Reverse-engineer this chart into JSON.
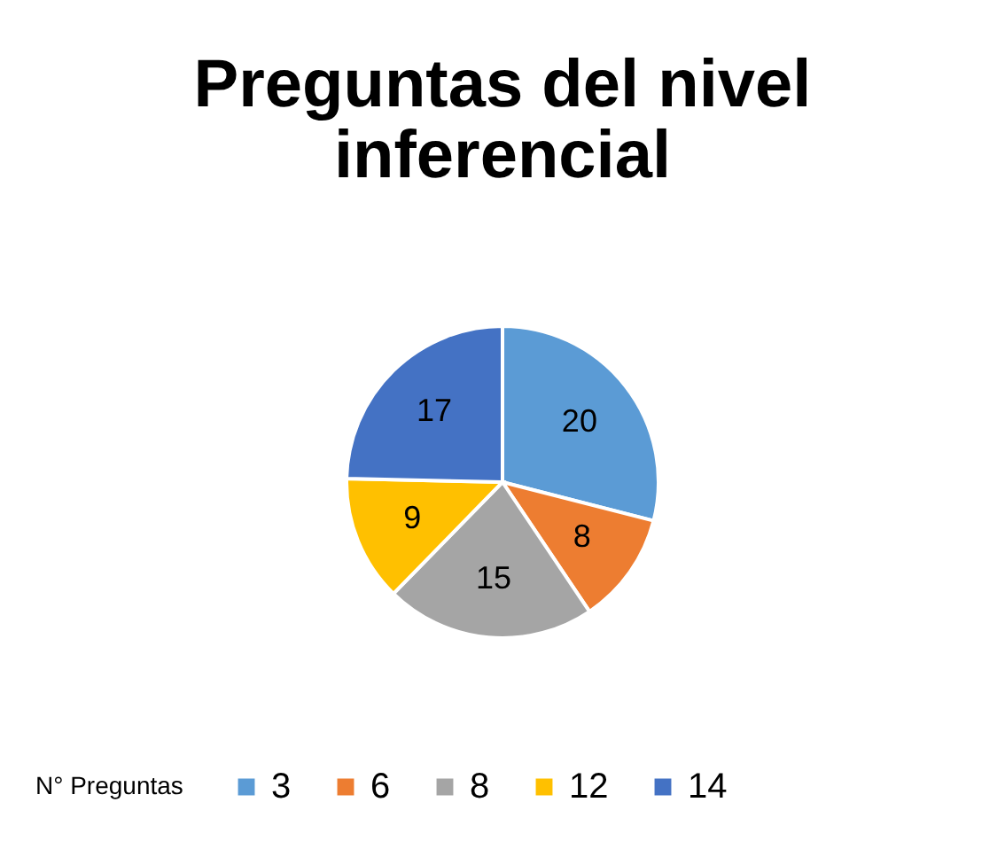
{
  "chart_data": {
    "type": "pie",
    "title": "Preguntas del nivel\ninferencial",
    "legend_title": "N° Preguntas",
    "categories": [
      "3",
      "6",
      "8",
      "12",
      "14"
    ],
    "values": [
      20,
      8,
      15,
      9,
      17
    ],
    "colors": [
      "#5b9bd5",
      "#ed7d31",
      "#a5a5a5",
      "#ffc000",
      "#4472c4"
    ],
    "data_labels": true,
    "legend": "bottom"
  }
}
